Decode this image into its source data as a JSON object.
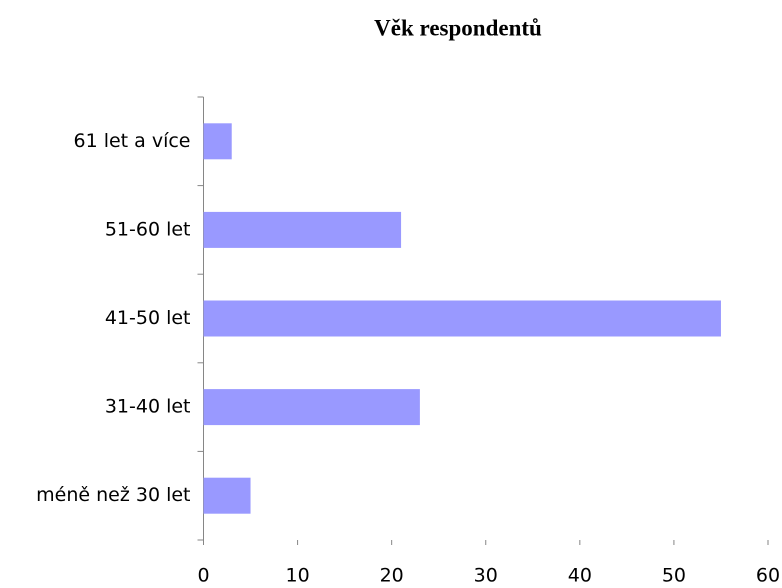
{
  "chart_data": {
    "type": "bar",
    "orientation": "horizontal",
    "title": "Věk respondentů",
    "categories": [
      "61 let a více",
      "51-60 let",
      "41-50 let",
      "31-40 let",
      "méně než 30 let"
    ],
    "values": [
      3,
      21,
      55,
      23,
      5
    ],
    "color": "#9999ff",
    "xlim": [
      0,
      60
    ],
    "xticks": [
      0,
      10,
      20,
      30,
      40,
      50,
      60
    ],
    "grid": false
  }
}
